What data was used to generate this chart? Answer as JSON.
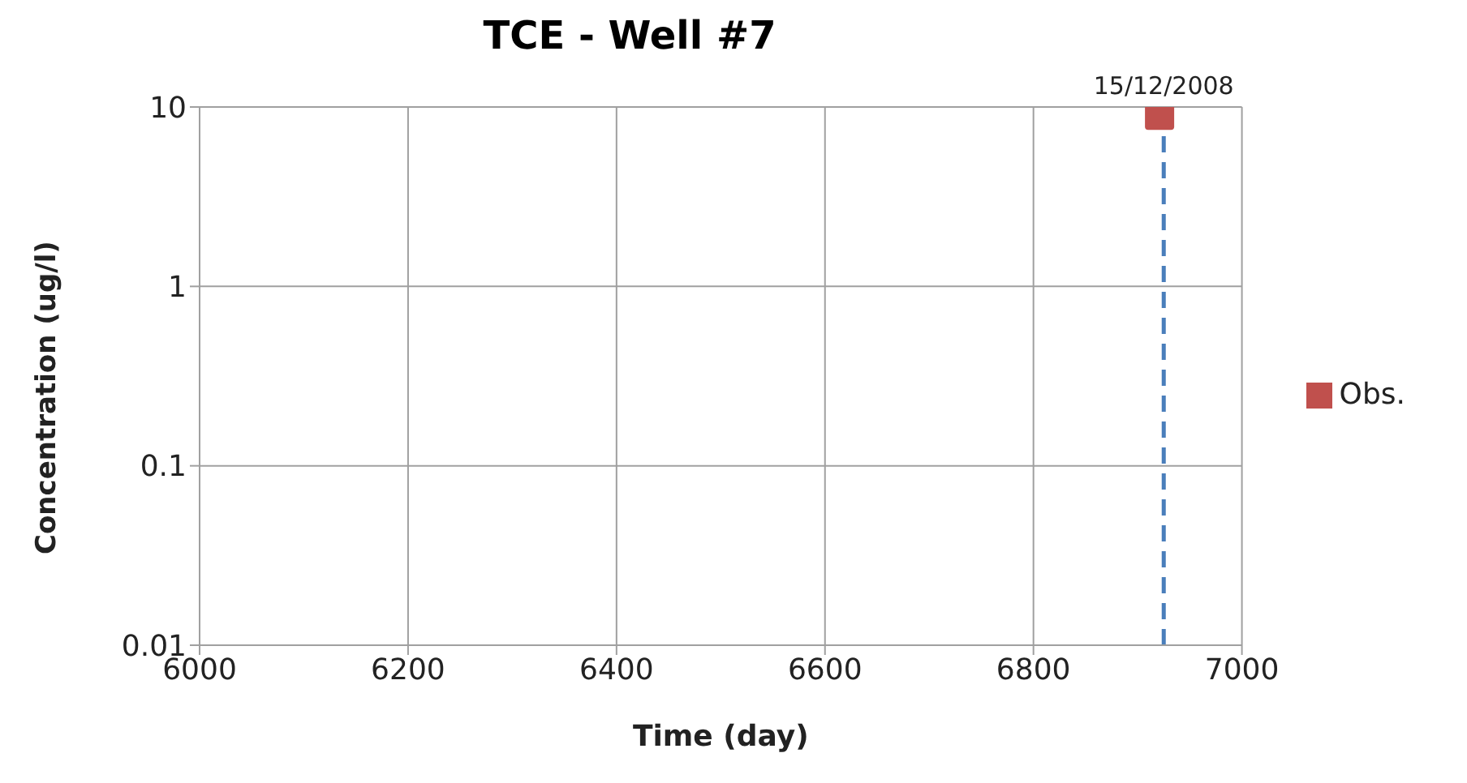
{
  "chart_data": {
    "type": "scatter",
    "title": "TCE - Well #7",
    "xlabel": "Time (day)",
    "ylabel": "Concentration (ug/l)",
    "series": [
      {
        "name": "Obs.",
        "color": "#c0504d",
        "x": [
          6921
        ],
        "values": [
          9
        ]
      }
    ],
    "xlim": [
      6000,
      7000
    ],
    "xticks": [
      6000,
      6200,
      6400,
      6600,
      6800,
      7000
    ],
    "ylim": [
      0.01,
      10
    ],
    "yticks": [
      0.01,
      0.1,
      1,
      10
    ],
    "log": "y",
    "grid": true,
    "legend": "right",
    "marker": "square",
    "annotations": [
      {
        "text": "15/12/2008",
        "x": 6925,
        "y": 10
      }
    ],
    "ref_lines": [
      {
        "axis": "x",
        "value": 6925,
        "color": "#4a7ebb",
        "line_style": "dashed"
      }
    ]
  }
}
